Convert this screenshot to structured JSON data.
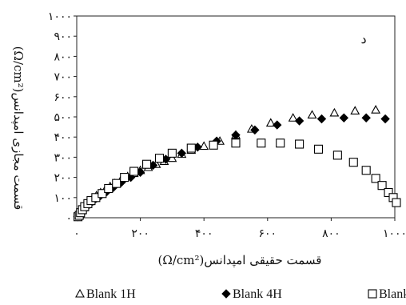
{
  "chart_data": {
    "type": "scatter",
    "panel_label": "د",
    "xlabel": "قسمت حقیقی امپدانس(Ω/cm²)",
    "ylabel": "قسمت مجازی امپدانس(Ω/cm²)",
    "xlim": [
      0,
      1000
    ],
    "ylim": [
      0,
      1000
    ],
    "x_ticks": [
      {
        "value": 0,
        "label": "۰"
      },
      {
        "value": 200,
        "label": "۲۰۰"
      },
      {
        "value": 400,
        "label": "۴۰۰"
      },
      {
        "value": 600,
        "label": "۶۰۰"
      },
      {
        "value": 800,
        "label": "۸۰۰"
      },
      {
        "value": 1000,
        "label": "۱۰۰۰"
      }
    ],
    "y_ticks": [
      {
        "value": 0,
        "label": "۰"
      },
      {
        "value": 100,
        "label": "۱۰۰"
      },
      {
        "value": 200,
        "label": "۲۰۰"
      },
      {
        "value": 300,
        "label": "۳۰۰"
      },
      {
        "value": 400,
        "label": "۴۰۰"
      },
      {
        "value": 500,
        "label": "۵۰۰"
      },
      {
        "value": 600,
        "label": "۶۰۰"
      },
      {
        "value": 700,
        "label": "۷۰۰"
      },
      {
        "value": 800,
        "label": "۸۰۰"
      },
      {
        "value": 900,
        "label": "۹۰۰"
      },
      {
        "value": 1000,
        "label": "۱۰۰۰"
      }
    ],
    "grid": false,
    "legend_position": "bottom",
    "series": [
      {
        "name": "Blank 1H",
        "marker": "triangle",
        "color": "#000000",
        "points": [
          [
            5,
            10
          ],
          [
            10,
            20
          ],
          [
            15,
            35
          ],
          [
            22,
            50
          ],
          [
            30,
            65
          ],
          [
            40,
            80
          ],
          [
            50,
            95
          ],
          [
            62,
            110
          ],
          [
            75,
            125
          ],
          [
            90,
            140
          ],
          [
            105,
            155
          ],
          [
            120,
            170
          ],
          [
            140,
            190
          ],
          [
            160,
            205
          ],
          [
            180,
            220
          ],
          [
            200,
            235
          ],
          [
            225,
            250
          ],
          [
            250,
            265
          ],
          [
            275,
            280
          ],
          [
            300,
            295
          ],
          [
            330,
            315
          ],
          [
            360,
            335
          ],
          [
            400,
            355
          ],
          [
            450,
            380
          ],
          [
            500,
            410
          ],
          [
            550,
            440
          ],
          [
            610,
            470
          ],
          [
            680,
            495
          ],
          [
            740,
            510
          ],
          [
            810,
            520
          ],
          [
            875,
            530
          ],
          [
            940,
            535
          ]
        ]
      },
      {
        "name": "Blank 4H",
        "marker": "diamond",
        "color": "#000000",
        "points": [
          [
            3,
            5
          ],
          [
            8,
            12
          ],
          [
            12,
            22
          ],
          [
            18,
            35
          ],
          [
            25,
            48
          ],
          [
            35,
            60
          ],
          [
            45,
            75
          ],
          [
            60,
            95
          ],
          [
            75,
            110
          ],
          [
            95,
            130
          ],
          [
            115,
            150
          ],
          [
            140,
            175
          ],
          [
            170,
            200
          ],
          [
            200,
            225
          ],
          [
            240,
            260
          ],
          [
            280,
            290
          ],
          [
            330,
            320
          ],
          [
            380,
            350
          ],
          [
            440,
            380
          ],
          [
            500,
            410
          ],
          [
            560,
            435
          ],
          [
            630,
            460
          ],
          [
            700,
            480
          ],
          [
            770,
            490
          ],
          [
            840,
            495
          ],
          [
            910,
            495
          ],
          [
            970,
            490
          ]
        ]
      },
      {
        "name": "Blank ...",
        "marker": "square",
        "color": "#000000",
        "points": [
          [
            4,
            5
          ],
          [
            8,
            12
          ],
          [
            12,
            25
          ],
          [
            18,
            40
          ],
          [
            25,
            55
          ],
          [
            35,
            70
          ],
          [
            45,
            85
          ],
          [
            60,
            100
          ],
          [
            80,
            120
          ],
          [
            100,
            145
          ],
          [
            125,
            170
          ],
          [
            150,
            200
          ],
          [
            180,
            230
          ],
          [
            220,
            265
          ],
          [
            260,
            295
          ],
          [
            300,
            320
          ],
          [
            360,
            345
          ],
          [
            430,
            360
          ],
          [
            500,
            370
          ],
          [
            580,
            370
          ],
          [
            640,
            370
          ],
          [
            700,
            365
          ],
          [
            760,
            340
          ],
          [
            820,
            310
          ],
          [
            870,
            275
          ],
          [
            910,
            235
          ],
          [
            940,
            195
          ],
          [
            960,
            160
          ],
          [
            980,
            125
          ],
          [
            995,
            100
          ],
          [
            1005,
            75
          ]
        ]
      }
    ]
  }
}
